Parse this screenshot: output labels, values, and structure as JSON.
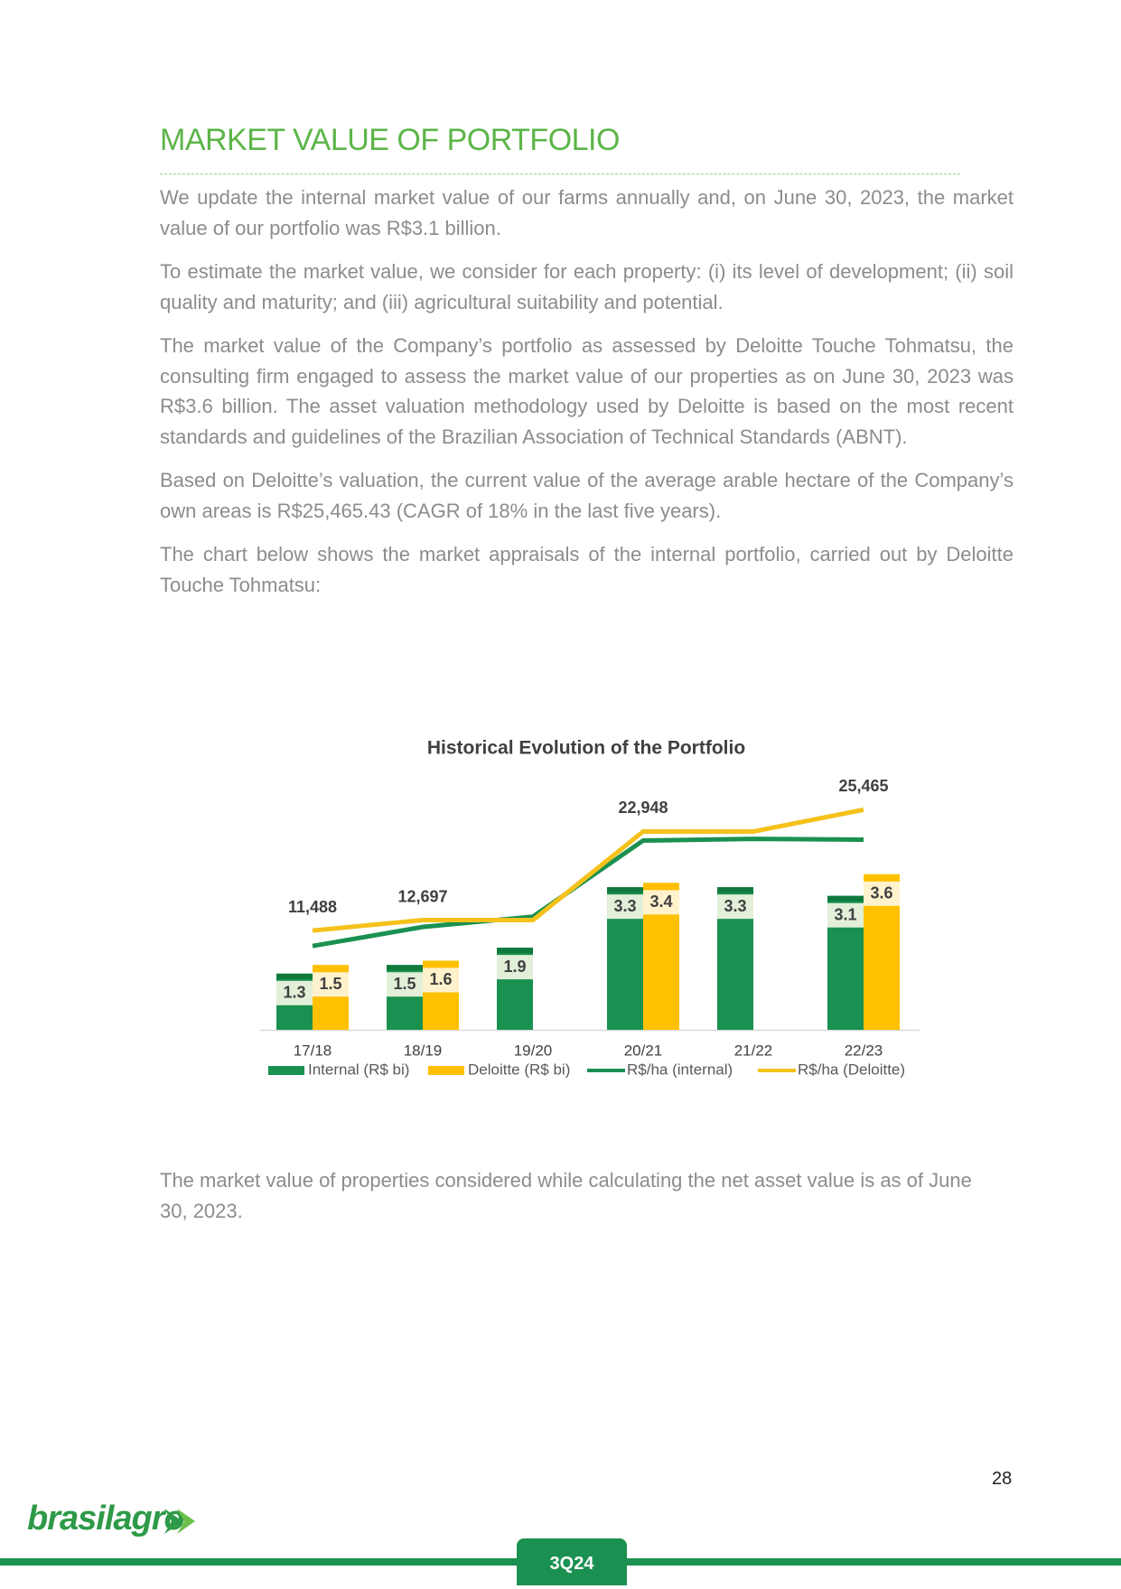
{
  "title": "MARKET VALUE OF PORTFOLIO",
  "paragraphs": [
    "We update the internal market value of our farms annually and, on June 30, 2023, the market value of our portfolio was R$3.1 billion.",
    "To estimate the market value, we consider for each property: (i) its level of development; (ii) soil quality and maturity; and (iii) agricultural suitability and potential.",
    "The market value of the Company’s portfolio as assessed by Deloitte Touche Tohmatsu, the consulting firm engaged to assess the market value of our properties as on June 30, 2023 was R$3.6 billion. The asset valuation methodology used by Deloitte is based on the most recent standards and guidelines of the Brazilian Association of Technical Standards (ABNT).",
    "Based on Deloitte’s valuation, the current value of the average arable hectare of the Company’s own areas is R$25,465.43 (CAGR of 18% in the last five years).",
    "The chart below shows the market appraisals of the internal portfolio, carried out by Deloitte Touche Tohmatsu:"
  ],
  "chart_data": {
    "type": "bar",
    "title": "Historical Evolution of the Portfolio",
    "categories": [
      "17/18",
      "18/19",
      "19/20",
      "20/21",
      "21/22",
      "22/23"
    ],
    "ylim": [
      0,
      6
    ],
    "y2lim": [
      0,
      30000
    ],
    "series": [
      {
        "name": "Internal (R$ bi)",
        "type": "bar",
        "color": "#1a9150",
        "values": [
          1.3,
          1.5,
          1.9,
          3.3,
          3.3,
          3.1
        ]
      },
      {
        "name": "Deloitte (R$ bi)",
        "type": "bar",
        "color": "#ffc000",
        "values": [
          1.5,
          1.6,
          null,
          3.4,
          null,
          3.6
        ]
      },
      {
        "name": "R$/ha (internal)",
        "type": "line",
        "axis": "y2",
        "color": "#1a9150",
        "values": [
          9700,
          11900,
          13100,
          21900,
          22100,
          22000
        ]
      },
      {
        "name": "R$/ha (Deloitte)",
        "type": "line",
        "axis": "y2",
        "color": "#f5c21b",
        "values": [
          11488,
          12697,
          12697,
          22948,
          22948,
          25465
        ],
        "value_labels": [
          "11,488",
          "12,697",
          null,
          "22,948",
          null,
          "25,465"
        ]
      }
    ]
  },
  "closing": "The market value of properties considered while calculating the net asset value is as of June 30, 2023.",
  "page_number": "28",
  "logo": "brasilagro",
  "badge": "3Q24"
}
